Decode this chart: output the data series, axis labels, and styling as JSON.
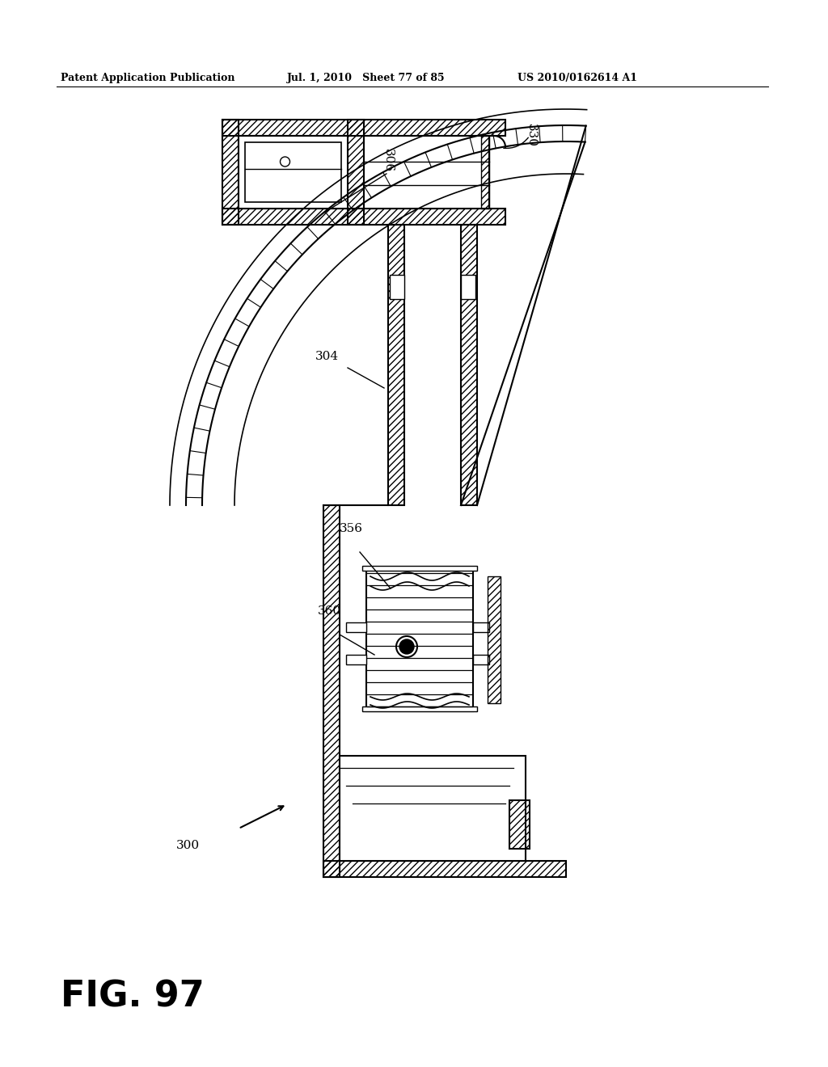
{
  "header_left": "Patent Application Publication",
  "header_mid": "Jul. 1, 2010   Sheet 77 of 85",
  "header_right": "US 2010/0162614 A1",
  "fig_label": "FIG. 97",
  "label_300": "300",
  "label_304": "304",
  "label_306": "306",
  "label_330": "330",
  "label_356": "356",
  "label_360": "360",
  "bg_color": "#ffffff",
  "line_color": "#000000"
}
